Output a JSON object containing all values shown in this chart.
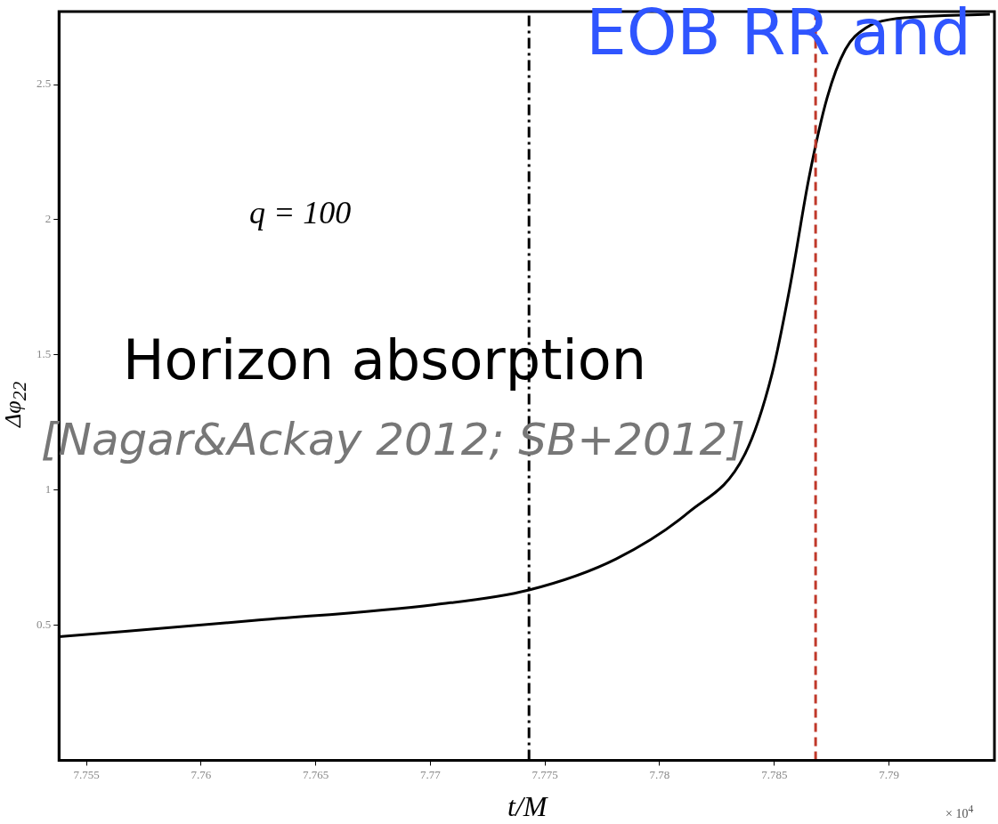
{
  "chart_data": {
    "type": "line",
    "title": "EOB RR and",
    "xlabel": "t/M",
    "ylabel": "Δφ$_{22}$",
    "annotations": [
      "q = 100",
      "Horizon absorption",
      "[Nagar&Ackay 2012; SB+2012]",
      "× 10$^{4}$"
    ],
    "series": [
      {
        "color": "#000000",
        "x": [
          7.7538,
          7.7623,
          7.7702,
          7.7743,
          7.7781,
          7.7813,
          7.7837,
          7.7849,
          7.7857,
          7.7865,
          7.7873,
          7.7881,
          7.789,
          7.79,
          7.7944
        ],
        "values": [
          0.457,
          0.517,
          0.576,
          0.63,
          0.745,
          0.92,
          1.13,
          1.43,
          1.76,
          2.15,
          2.45,
          2.63,
          2.71,
          2.74,
          2.76
        ]
      }
    ],
    "ref_lines": [
      {
        "axis": "x",
        "value": 7.7743,
        "color": "#000000",
        "line_style": "dashdot"
      },
      {
        "axis": "x",
        "value": 7.7868,
        "color": "#c0392b",
        "line_style": "dashed"
      }
    ],
    "xlim": [
      7.7538,
      7.7946
    ],
    "xticks": [
      7.755,
      7.76,
      7.765,
      7.77,
      7.775,
      7.78,
      7.785,
      7.79
    ],
    "ylim": [
      0,
      2.77
    ],
    "yticks": [
      0.5,
      1,
      1.5,
      2,
      2.5
    ],
    "grid": false,
    "legend": false,
    "marker": "none",
    "line_style": "solid"
  }
}
